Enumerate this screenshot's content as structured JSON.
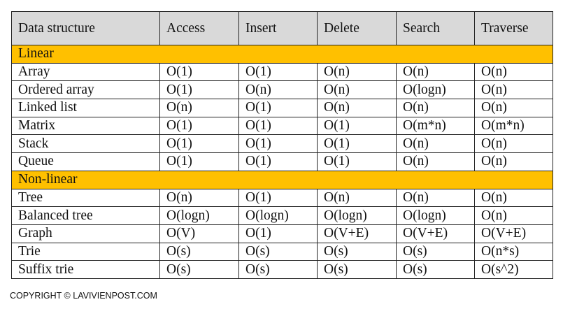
{
  "table": {
    "headers": [
      "Data structure",
      "Access",
      "Insert",
      "Delete",
      "Search",
      "Traverse"
    ],
    "group_color": "#ffc000",
    "header_color": "#d9d9d9",
    "groups": [
      {
        "label": "Linear",
        "rows": [
          [
            "Array",
            "O(1)",
            "O(1)",
            "O(n)",
            "O(n)",
            "O(n)"
          ],
          [
            "Ordered array",
            "O(1)",
            "O(n)",
            "O(n)",
            "O(logn)",
            "O(n)"
          ],
          [
            "Linked list",
            "O(n)",
            "O(1)",
            "O(n)",
            "O(n)",
            "O(n)"
          ],
          [
            "Matrix",
            "O(1)",
            "O(1)",
            "O(1)",
            "O(m*n)",
            "O(m*n)"
          ],
          [
            "Stack",
            "O(1)",
            "O(1)",
            "O(1)",
            "O(n)",
            "O(n)"
          ],
          [
            "Queue",
            "O(1)",
            "O(1)",
            "O(1)",
            "O(n)",
            "O(n)"
          ]
        ]
      },
      {
        "label": "Non-linear",
        "rows": [
          [
            "Tree",
            "O(n)",
            "O(1)",
            "O(n)",
            "O(n)",
            "O(n)"
          ],
          [
            "Balanced tree",
            "O(logn)",
            "O(logn)",
            "O(logn)",
            "O(logn)",
            "O(n)"
          ],
          [
            "Graph",
            "O(V)",
            "O(1)",
            "O(V+E)",
            "O(V+E)",
            "O(V+E)"
          ],
          [
            "Trie",
            "O(s)",
            "O(s)",
            "O(s)",
            "O(s)",
            "O(n*s)"
          ],
          [
            "Suffix trie",
            "O(s)",
            "O(s)",
            "O(s)",
            "O(s)",
            "O(s^2)"
          ]
        ]
      }
    ]
  },
  "footer": {
    "copyright": "COPYRIGHT © LAVIVIENPOST.COM"
  }
}
